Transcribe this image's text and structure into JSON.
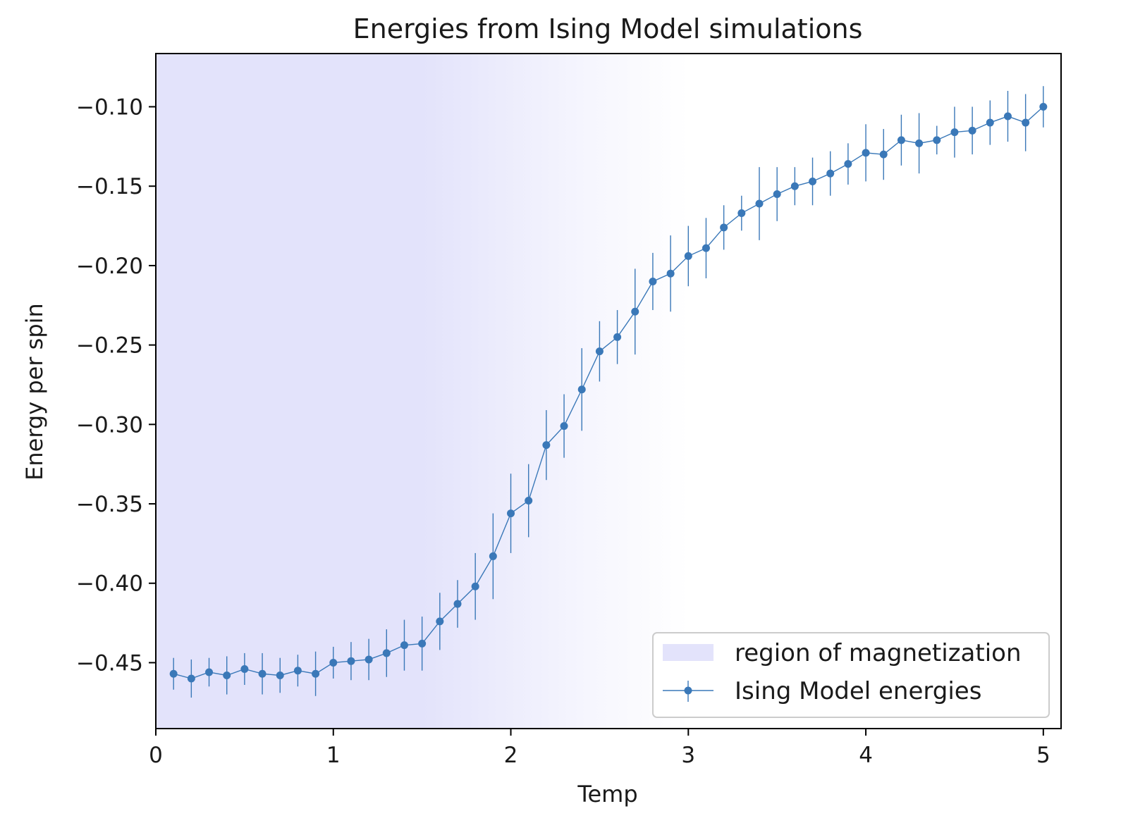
{
  "chart_data": {
    "type": "line",
    "title": "Energies from Ising Model simulations",
    "xlabel": "Temp",
    "ylabel": "Energy per spin",
    "xlim": [
      0,
      5.1
    ],
    "ylim": [
      -0.4915,
      -0.0665
    ],
    "xticks": [
      0,
      1,
      2,
      3,
      4,
      5
    ],
    "xtick_labels": [
      "0",
      "1",
      "2",
      "3",
      "4",
      "5"
    ],
    "yticks": [
      -0.1,
      -0.15,
      -0.2,
      -0.25,
      -0.3,
      -0.35,
      -0.4,
      -0.45
    ],
    "ytick_labels": [
      "−0.10",
      "−0.15",
      "−0.20",
      "−0.25",
      "−0.30",
      "−0.35",
      "−0.40",
      "−0.45"
    ],
    "grid": false,
    "legend_position": "lower-right",
    "shaded_region": {
      "label": "region of magnetization",
      "x_start": 0,
      "x_solid_until": 1.5,
      "x_fade_end": 3.0,
      "color": "#e3e3fb"
    },
    "series": [
      {
        "name": "Ising Model energies",
        "color": "#3a78b8",
        "x": [
          0.1,
          0.2,
          0.3,
          0.4,
          0.5,
          0.6,
          0.7,
          0.8,
          0.9,
          1.0,
          1.1,
          1.2,
          1.3,
          1.4,
          1.5,
          1.6,
          1.7,
          1.8,
          1.9,
          2.0,
          2.1,
          2.2,
          2.3,
          2.4,
          2.5,
          2.6,
          2.7,
          2.8,
          2.9,
          3.0,
          3.1,
          3.2,
          3.3,
          3.4,
          3.5,
          3.6,
          3.7,
          3.8,
          3.9,
          4.0,
          4.1,
          4.2,
          4.3,
          4.4,
          4.5,
          4.6,
          4.7,
          4.8,
          4.9,
          5.0
        ],
        "y": [
          -0.457,
          -0.46,
          -0.456,
          -0.458,
          -0.454,
          -0.457,
          -0.458,
          -0.455,
          -0.457,
          -0.45,
          -0.449,
          -0.448,
          -0.444,
          -0.439,
          -0.438,
          -0.424,
          -0.413,
          -0.402,
          -0.383,
          -0.356,
          -0.348,
          -0.313,
          -0.301,
          -0.278,
          -0.254,
          -0.245,
          -0.229,
          -0.21,
          -0.205,
          -0.194,
          -0.189,
          -0.176,
          -0.167,
          -0.161,
          -0.155,
          -0.15,
          -0.147,
          -0.142,
          -0.136,
          -0.129,
          -0.13,
          -0.121,
          -0.123,
          -0.121,
          -0.116,
          -0.115,
          -0.11,
          -0.106,
          -0.11,
          -0.1
        ],
        "yerr": [
          0.01,
          0.012,
          0.009,
          0.012,
          0.01,
          0.013,
          0.011,
          0.01,
          0.014,
          0.01,
          0.012,
          0.013,
          0.015,
          0.016,
          0.017,
          0.018,
          0.015,
          0.021,
          0.027,
          0.025,
          0.023,
          0.022,
          0.02,
          0.026,
          0.019,
          0.017,
          0.027,
          0.018,
          0.024,
          0.019,
          0.019,
          0.014,
          0.011,
          0.023,
          0.017,
          0.012,
          0.015,
          0.014,
          0.013,
          0.018,
          0.016,
          0.016,
          0.019,
          0.009,
          0.016,
          0.015,
          0.014,
          0.016,
          0.018,
          0.013
        ]
      }
    ]
  }
}
